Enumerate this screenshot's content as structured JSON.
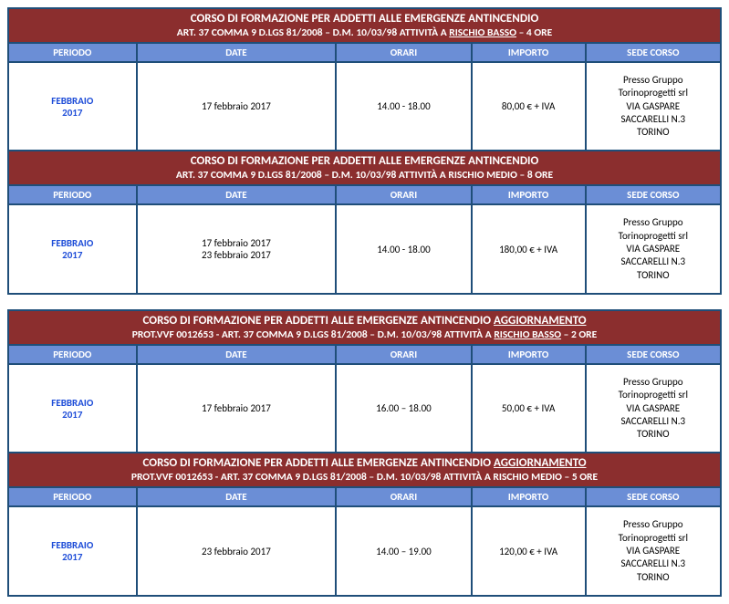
{
  "column_headers": {
    "periodo": "PERIODO",
    "date": "DATE",
    "orari": "ORARI",
    "importo": "IMPORTO",
    "sede": "SEDE CORSO"
  },
  "groups": [
    {
      "sections": [
        {
          "title": "CORSO DI FORMAZIONE PER ADDETTI ALLE EMERGENZE ANTINCENDIO",
          "subtitle_pre": "ART. 37 COMMA 9 D.LGS 81/2008 – D.M. 10/03/98 ATTIVITÀ A ",
          "subtitle_underline": "RISCHIO BASSO",
          "subtitle_post": "  –  4 ORE",
          "row": {
            "periodo_month": "FEBBRAIO",
            "periodo_year": "2017",
            "dates": [
              "17 febbraio 2017"
            ],
            "orari": "14.00 - 18.00",
            "importo": "80,00 € + IVA",
            "sede": [
              "Presso Gruppo",
              "Torinoprogetti srl",
              "VIA GASPARE",
              "SACCARELLI N.3",
              "TORINO"
            ]
          }
        },
        {
          "title": "CORSO DI FORMAZIONE PER ADDETTI ALLE EMERGENZE ANTINCENDIO",
          "subtitle_pre": "ART. 37 COMMA 9 D.LGS 81/2008 – D.M. 10/03/98 ATTIVITÀ A RISCHIO MEDIO –  8 ORE",
          "subtitle_underline": "",
          "subtitle_post": "",
          "row": {
            "periodo_month": "FEBBRAIO",
            "periodo_year": "2017",
            "dates": [
              "17 febbraio 2017",
              "23 febbraio 2017"
            ],
            "orari": "14.00 - 18.00",
            "importo": "180,00 € + IVA",
            "sede": [
              "Presso Gruppo",
              "Torinoprogetti srl",
              "VIA GASPARE",
              "SACCARELLI N.3",
              "TORINO"
            ]
          }
        }
      ]
    },
    {
      "sections": [
        {
          "title_pre": "CORSO DI FORMAZIONE PER ADDETTI ALLE EMERGENZE ANTINCENDIO ",
          "title_underline": "AGGIORNAMENTO",
          "subtitle_pre": "PROT.VVF 0012653 - ART. 37 COMMA 9 D.LGS 81/2008 – D.M. 10/03/98 ATTIVITÀ A ",
          "subtitle_underline": "RISCHIO BASSO",
          "subtitle_post": " –  2 ORE",
          "row": {
            "periodo_month": "FEBBRAIO",
            "periodo_year": "2017",
            "dates": [
              "17 febbraio 2017"
            ],
            "orari": "16.00 – 18.00",
            "importo": "50,00 € + IVA",
            "sede": [
              "Presso Gruppo",
              "Torinoprogetti srl",
              "VIA GASPARE",
              "SACCARELLI N.3",
              "TORINO"
            ]
          }
        },
        {
          "title_pre": "CORSO DI FORMAZIONE PER ADDETTI ALLE EMERGENZE ANTINCENDIO ",
          "title_underline": "AGGIORNAMENTO",
          "subtitle_pre": "PROT.VVF 0012653 - ART. 37 COMMA 9 D.LGS 81/2008 – D.M. 10/03/98 ATTIVITÀ A RISCHIO MEDIO –  5 ORE",
          "subtitle_underline": "",
          "subtitle_post": "",
          "row": {
            "periodo_month": "FEBBRAIO",
            "periodo_year": "2017",
            "dates": [
              "23 febbraio 2017"
            ],
            "orari": "14.00 – 19.00",
            "importo": "120,00 € + IVA",
            "sede": [
              "Presso Gruppo",
              "Torinoprogetti srl",
              "VIA GASPARE",
              "SACCARELLI N.3",
              "TORINO"
            ]
          }
        }
      ]
    }
  ]
}
